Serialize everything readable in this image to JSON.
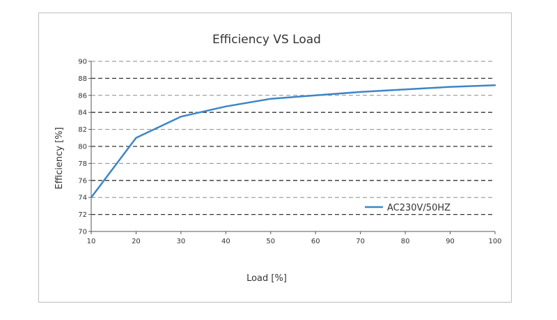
{
  "chart_data": {
    "type": "line",
    "title": "Efficiency VS Load",
    "xlabel": "Load [%]",
    "ylabel": "Efficiency [%]",
    "xlim": [
      10,
      100
    ],
    "ylim": [
      70,
      90
    ],
    "x_ticks": [
      10,
      20,
      30,
      40,
      50,
      60,
      70,
      80,
      90,
      100
    ],
    "y_ticks": [
      70,
      72,
      74,
      76,
      78,
      80,
      82,
      84,
      86,
      88,
      90
    ],
    "grid": true,
    "legend_position": "lower-right",
    "series": [
      {
        "name": "AC230V/50HZ",
        "color": "#3d85c6",
        "x": [
          10,
          20,
          30,
          40,
          50,
          60,
          70,
          80,
          90,
          100
        ],
        "y": [
          74.0,
          81.0,
          83.5,
          84.7,
          85.6,
          86.0,
          86.4,
          86.7,
          87.0,
          87.2
        ]
      }
    ]
  }
}
